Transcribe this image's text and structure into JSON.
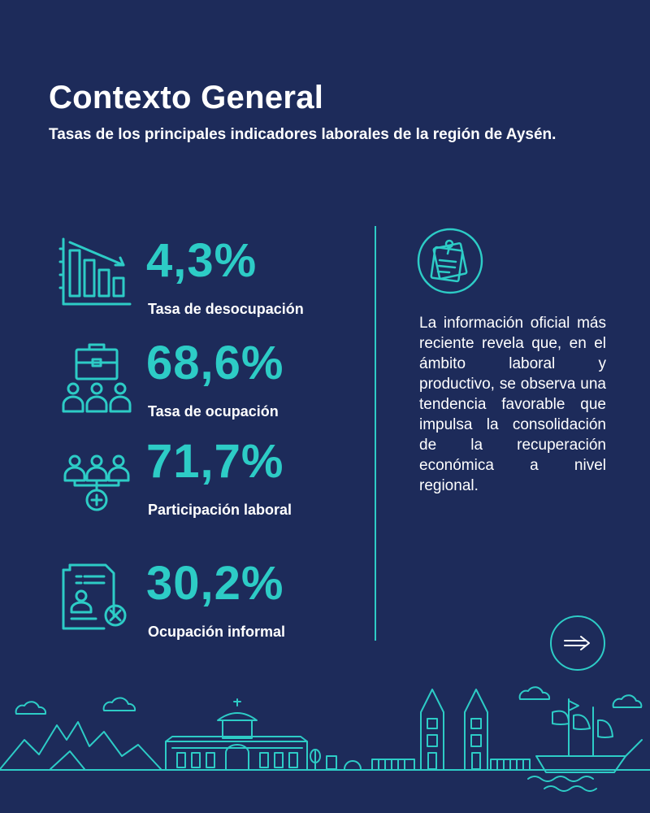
{
  "header": {
    "title": "Contexto General",
    "subtitle": "Tasas de los principales indicadores laborales de la región de Aysén."
  },
  "stats": [
    {
      "value": "4,3%",
      "label": "Tasa de desocupación",
      "icon": "declining-bar-chart-icon"
    },
    {
      "value": "68,6%",
      "label": "Tasa de ocupación",
      "icon": "briefcase-people-icon"
    },
    {
      "value": "71,7%",
      "label": "Participación laboral",
      "icon": "people-plus-icon"
    },
    {
      "value": "30,2%",
      "label": "Ocupación informal",
      "icon": "document-person-x-icon"
    }
  ],
  "side": {
    "icon": "pinned-note-icon",
    "paragraph": "La información oficial más reciente revela que, en el ámbito laboral y productivo, se observa una tendencia favorable que impulsa la consolidación de la recuperación económica a nivel regional."
  },
  "next_button": {
    "icon": "arrow-right-icon"
  },
  "colors": {
    "background": "#1d2b5a",
    "accent": "#2dccc6",
    "text": "#ffffff"
  }
}
